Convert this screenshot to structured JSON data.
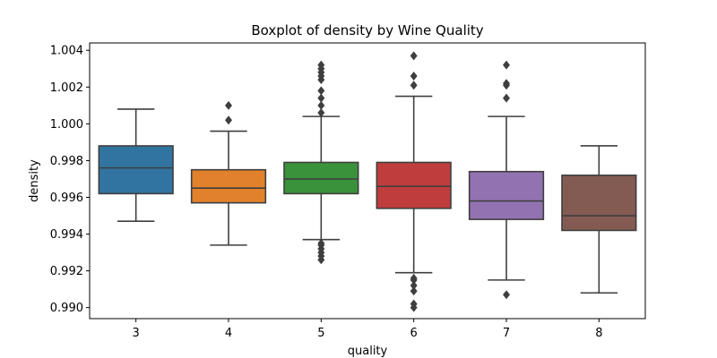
{
  "chart_data": {
    "type": "box",
    "title": "Boxplot of density by Wine Quality",
    "xlabel": "quality",
    "ylabel": "density",
    "ylim": [
      0.9894,
      1.0044
    ],
    "yticks": [
      0.99,
      0.992,
      0.994,
      0.996,
      0.998,
      1.0,
      1.002,
      1.004
    ],
    "ytick_labels": [
      "0.990",
      "0.992",
      "0.994",
      "0.996",
      "0.998",
      "1.000",
      "1.002",
      "1.004"
    ],
    "grid": false,
    "categories": [
      "3",
      "4",
      "5",
      "6",
      "7",
      "8"
    ],
    "colors": [
      "#3274a1",
      "#e1812c",
      "#3a923a",
      "#c03d3e",
      "#9372b2",
      "#845b53"
    ],
    "edge_color": "#3f3f3f",
    "boxes": [
      {
        "category": "3",
        "whisker_low": 0.9947,
        "q1": 0.9962,
        "median": 0.9976,
        "q3": 0.9988,
        "whisker_high": 1.0008,
        "outliers": []
      },
      {
        "category": "4",
        "whisker_low": 0.9934,
        "q1": 0.9957,
        "median": 0.9965,
        "q3": 0.9975,
        "whisker_high": 0.9996,
        "outliers": [
          1.0002,
          1.001
        ]
      },
      {
        "category": "5",
        "whisker_low": 0.9937,
        "q1": 0.9962,
        "median": 0.997,
        "q3": 0.9979,
        "whisker_high": 1.0004,
        "outliers": [
          0.9926,
          0.9928,
          0.993,
          0.9932,
          0.9934,
          0.9935,
          1.0006,
          1.001,
          1.0014,
          1.0018,
          1.0024,
          1.0026,
          1.0028,
          1.003,
          1.0032
        ]
      },
      {
        "category": "6",
        "whisker_low": 0.9919,
        "q1": 0.9954,
        "median": 0.9966,
        "q3": 0.9979,
        "whisker_high": 1.0015,
        "outliers": [
          0.99,
          0.9902,
          0.9909,
          0.9912,
          0.9915,
          0.9916,
          1.0021,
          1.0026,
          1.0037
        ]
      },
      {
        "category": "7",
        "whisker_low": 0.9915,
        "q1": 0.9948,
        "median": 0.9958,
        "q3": 0.9974,
        "whisker_high": 1.0004,
        "outliers": [
          0.9907,
          1.0014,
          1.0021,
          1.0022,
          1.0032
        ]
      },
      {
        "category": "8",
        "whisker_low": 0.9908,
        "q1": 0.9942,
        "median": 0.995,
        "q3": 0.9972,
        "whisker_high": 0.9988,
        "outliers": []
      }
    ]
  }
}
